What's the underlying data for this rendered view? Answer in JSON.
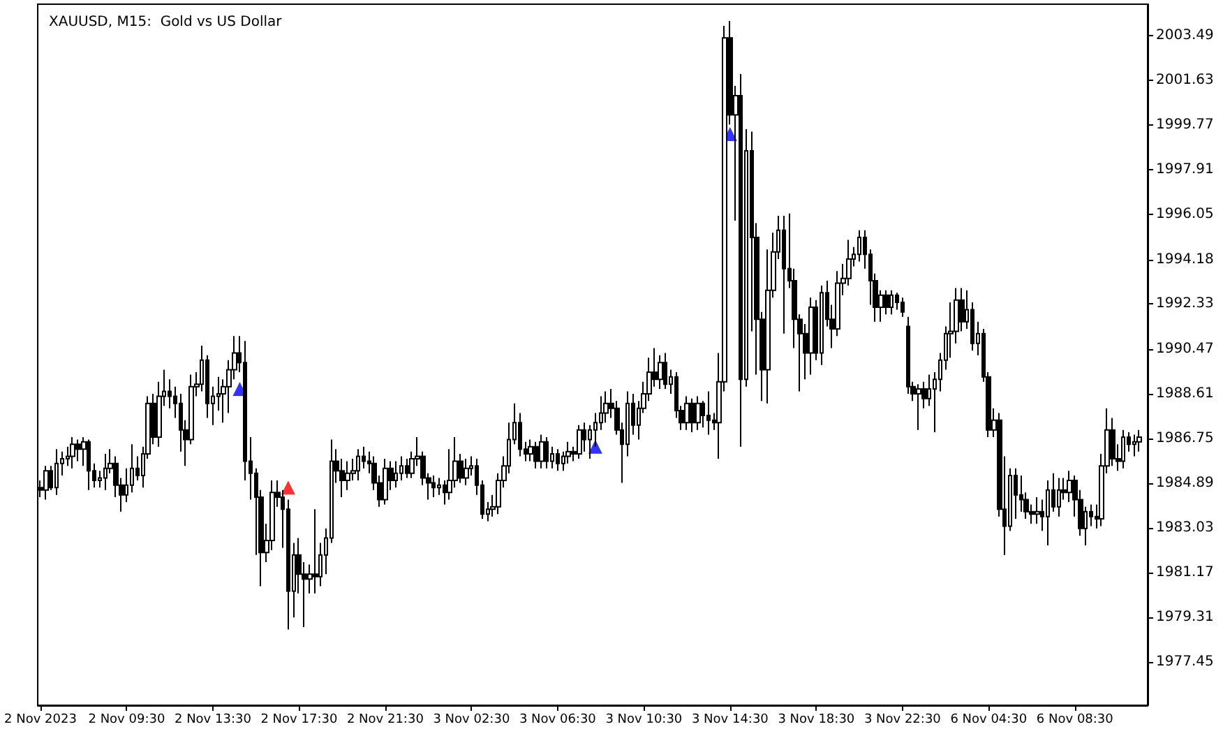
{
  "chart_data": {
    "type": "candlestick",
    "title": "XAUUSD, M15:  Gold vs US Dollar",
    "categories": [
      "2 Nov 2023",
      null,
      null,
      null,
      null,
      null,
      null,
      null,
      null,
      null,
      null,
      null,
      null,
      null,
      null,
      null,
      "2 Nov 09:30",
      null,
      null,
      null,
      null,
      null,
      null,
      null,
      null,
      null,
      null,
      null,
      null,
      null,
      null,
      null,
      "2 Nov 13:30",
      null,
      null,
      null,
      null,
      null,
      null,
      null,
      null,
      null,
      null,
      null,
      null,
      null,
      null,
      null,
      "2 Nov 17:30",
      null,
      null,
      null,
      null,
      null,
      null,
      null,
      null,
      null,
      null,
      null,
      null,
      null,
      null,
      null,
      "2 Nov 21:30",
      null,
      null,
      null,
      null,
      null,
      null,
      null,
      null,
      null,
      null,
      null,
      null,
      null,
      null,
      null,
      "3 Nov 02:30",
      null,
      null,
      null,
      null,
      null,
      null,
      null,
      null,
      null,
      null,
      null,
      null,
      null,
      null,
      null,
      "3 Nov 06:30",
      null,
      null,
      null,
      null,
      null,
      null,
      null,
      null,
      null,
      null,
      null,
      null,
      null,
      null,
      null,
      "3 Nov 10:30",
      null,
      null,
      null,
      null,
      null,
      null,
      null,
      null,
      null,
      null,
      null,
      null,
      null,
      null,
      null,
      "3 Nov 14:30",
      null,
      null,
      null,
      null,
      null,
      null,
      null,
      null,
      null,
      null,
      null,
      null,
      null,
      null,
      null,
      "3 Nov 18:30",
      null,
      null,
      null,
      null,
      null,
      null,
      null,
      null,
      null,
      null,
      null,
      null,
      null,
      null,
      null,
      "3 Nov 22:30",
      null,
      null,
      null,
      null,
      null,
      null,
      null,
      null,
      null,
      null,
      null,
      null,
      null,
      null,
      null,
      "6 Nov 04:30",
      null,
      null,
      null,
      null,
      null,
      null,
      null,
      null,
      null,
      null,
      null,
      null,
      null,
      null,
      null,
      "6 Nov 08:30",
      null,
      null,
      null,
      null,
      null,
      null,
      null,
      null,
      null,
      null,
      null,
      null
    ],
    "color": "#000000",
    "ohlc": [
      [
        1984.7,
        1985.0,
        1984.3,
        1984.6
      ],
      [
        1984.6,
        1985.6,
        1984.2,
        1985.4
      ],
      [
        1985.4,
        1985.6,
        1984.6,
        1984.7
      ],
      [
        1984.7,
        1986.3,
        1984.4,
        1985.7
      ],
      [
        1985.7,
        1986.2,
        1985.2,
        1985.9
      ],
      [
        1985.9,
        1986.4,
        1985.6,
        1986.0
      ],
      [
        1986.0,
        1986.8,
        1985.5,
        1986.5
      ],
      [
        1986.5,
        1986.7,
        1985.8,
        1986.3
      ],
      [
        1986.3,
        1986.8,
        1985.6,
        1986.6
      ],
      [
        1986.6,
        1986.7,
        1984.6,
        1985.4
      ],
      [
        1985.4,
        1985.7,
        1984.7,
        1985.0
      ],
      [
        1985.0,
        1985.4,
        1984.7,
        1985.1
      ],
      [
        1985.1,
        1986.1,
        1984.6,
        1985.5
      ],
      [
        1985.5,
        1986.3,
        1985.3,
        1985.7
      ],
      [
        1985.7,
        1986.0,
        1984.3,
        1984.8
      ],
      [
        1984.8,
        1985.1,
        1983.7,
        1984.4
      ],
      [
        1984.4,
        1985.5,
        1984.1,
        1984.8
      ],
      [
        1984.8,
        1986.5,
        1984.5,
        1985.5
      ],
      [
        1985.5,
        1986.0,
        1985.0,
        1985.2
      ],
      [
        1985.2,
        1986.4,
        1984.7,
        1986.1
      ],
      [
        1986.1,
        1988.5,
        1985.9,
        1988.2
      ],
      [
        1988.2,
        1988.6,
        1986.5,
        1986.8
      ],
      [
        1986.8,
        1989.1,
        1986.4,
        1988.5
      ],
      [
        1988.5,
        1989.6,
        1988.1,
        1988.7
      ],
      [
        1988.7,
        1989.2,
        1988.0,
        1988.5
      ],
      [
        1988.5,
        1988.9,
        1987.6,
        1988.2
      ],
      [
        1988.2,
        1988.6,
        1986.2,
        1987.1
      ],
      [
        1987.1,
        1987.5,
        1985.6,
        1986.7
      ],
      [
        1986.7,
        1989.4,
        1986.5,
        1988.9
      ],
      [
        1988.9,
        1989.5,
        1988.5,
        1989.0
      ],
      [
        1989.0,
        1990.6,
        1988.7,
        1990.0
      ],
      [
        1990.0,
        1990.2,
        1987.6,
        1988.2
      ],
      [
        1988.2,
        1988.9,
        1987.3,
        1988.5
      ],
      [
        1988.5,
        1989.3,
        1987.9,
        1988.6
      ],
      [
        1988.6,
        1989.2,
        1987.4,
        1988.9
      ],
      [
        1988.9,
        1990.0,
        1987.8,
        1989.6
      ],
      [
        1989.6,
        1991.0,
        1989.2,
        1990.3
      ],
      [
        1990.3,
        1991.0,
        1989.5,
        1989.9
      ],
      [
        1989.9,
        1990.8,
        1985.0,
        1985.8
      ],
      [
        1985.8,
        1986.8,
        1984.2,
        1985.3
      ],
      [
        1985.3,
        1985.5,
        1981.9,
        1984.3
      ],
      [
        1984.3,
        1984.6,
        1980.6,
        1982.0
      ],
      [
        1982.0,
        1983.2,
        1981.6,
        1982.5
      ],
      [
        1982.5,
        1985.0,
        1982.1,
        1984.5
      ],
      [
        1984.5,
        1985.0,
        1983.9,
        1984.3
      ],
      [
        1984.3,
        1984.6,
        1982.2,
        1983.8
      ],
      [
        1983.8,
        1984.2,
        1978.8,
        1980.4
      ],
      [
        1980.4,
        1982.4,
        1979.3,
        1981.9
      ],
      [
        1981.9,
        1982.6,
        1980.3,
        1981.1
      ],
      [
        1981.1,
        1981.6,
        1978.9,
        1980.9
      ],
      [
        1980.9,
        1981.5,
        1980.3,
        1981.1
      ],
      [
        1981.1,
        1983.8,
        1980.3,
        1981.0
      ],
      [
        1981.0,
        1982.4,
        1980.6,
        1981.9
      ],
      [
        1981.9,
        1983.0,
        1981.1,
        1982.6
      ],
      [
        1982.6,
        1986.7,
        1982.4,
        1985.8
      ],
      [
        1985.8,
        1986.3,
        1984.9,
        1985.4
      ],
      [
        1985.4,
        1985.9,
        1984.3,
        1985.0
      ],
      [
        1985.0,
        1985.8,
        1984.6,
        1985.3
      ],
      [
        1985.3,
        1985.9,
        1985.0,
        1985.4
      ],
      [
        1985.4,
        1986.3,
        1985.0,
        1986.0
      ],
      [
        1986.0,
        1986.4,
        1985.5,
        1985.8
      ],
      [
        1985.8,
        1986.2,
        1985.3,
        1985.7
      ],
      [
        1985.7,
        1986.0,
        1984.6,
        1984.9
      ],
      [
        1984.9,
        1985.2,
        1983.9,
        1984.2
      ],
      [
        1984.2,
        1985.9,
        1984.0,
        1985.5
      ],
      [
        1985.5,
        1985.8,
        1984.6,
        1985.0
      ],
      [
        1985.0,
        1985.8,
        1984.7,
        1985.3
      ],
      [
        1985.3,
        1986.0,
        1985.0,
        1985.6
      ],
      [
        1985.6,
        1985.9,
        1985.1,
        1985.3
      ],
      [
        1985.3,
        1986.2,
        1985.1,
        1985.9
      ],
      [
        1985.9,
        1986.8,
        1985.6,
        1986.0
      ],
      [
        1986.0,
        1986.2,
        1984.8,
        1985.1
      ],
      [
        1985.1,
        1985.3,
        1984.2,
        1984.9
      ],
      [
        1984.9,
        1985.2,
        1984.3,
        1984.7
      ],
      [
        1984.7,
        1985.1,
        1984.4,
        1984.8
      ],
      [
        1984.8,
        1985.0,
        1984.0,
        1984.5
      ],
      [
        1984.5,
        1986.3,
        1984.2,
        1985.0
      ],
      [
        1985.0,
        1986.8,
        1984.7,
        1985.8
      ],
      [
        1985.8,
        1986.1,
        1984.9,
        1985.1
      ],
      [
        1985.1,
        1985.9,
        1984.8,
        1985.5
      ],
      [
        1985.5,
        1986.0,
        1985.2,
        1985.6
      ],
      [
        1985.6,
        1985.9,
        1984.4,
        1984.8
      ],
      [
        1984.8,
        1985.0,
        1983.4,
        1983.6
      ],
      [
        1983.6,
        1984.1,
        1983.3,
        1983.8
      ],
      [
        1983.8,
        1984.4,
        1983.5,
        1983.9
      ],
      [
        1983.9,
        1985.3,
        1983.6,
        1985.0
      ],
      [
        1985.0,
        1986.0,
        1984.7,
        1985.6
      ],
      [
        1985.6,
        1987.4,
        1985.3,
        1986.7
      ],
      [
        1986.7,
        1988.2,
        1986.5,
        1987.4
      ],
      [
        1987.4,
        1987.8,
        1986.0,
        1986.3
      ],
      [
        1986.3,
        1986.6,
        1985.8,
        1986.1
      ],
      [
        1986.1,
        1986.7,
        1985.8,
        1986.4
      ],
      [
        1986.4,
        1986.6,
        1985.5,
        1985.8
      ],
      [
        1985.8,
        1986.9,
        1985.5,
        1986.6
      ],
      [
        1986.6,
        1986.8,
        1985.5,
        1985.8
      ],
      [
        1985.8,
        1986.4,
        1985.5,
        1986.1
      ],
      [
        1986.1,
        1986.3,
        1985.4,
        1985.7
      ],
      [
        1985.7,
        1986.2,
        1985.4,
        1986.0
      ],
      [
        1986.0,
        1986.6,
        1985.7,
        1986.2
      ],
      [
        1986.2,
        1986.4,
        1985.8,
        1986.1
      ],
      [
        1986.1,
        1987.3,
        1985.9,
        1987.1
      ],
      [
        1987.1,
        1987.4,
        1986.2,
        1986.7
      ],
      [
        1986.7,
        1987.3,
        1985.9,
        1987.1
      ],
      [
        1987.1,
        1987.8,
        1986.4,
        1987.4
      ],
      [
        1987.4,
        1988.5,
        1987.1,
        1987.8
      ],
      [
        1987.8,
        1988.7,
        1987.4,
        1988.2
      ],
      [
        1988.2,
        1988.8,
        1987.6,
        1988.0
      ],
      [
        1988.0,
        1988.3,
        1986.9,
        1987.1
      ],
      [
        1987.1,
        1987.4,
        1984.9,
        1986.5
      ],
      [
        1986.5,
        1988.7,
        1986.0,
        1988.2
      ],
      [
        1988.2,
        1988.6,
        1986.9,
        1987.3
      ],
      [
        1987.3,
        1988.3,
        1986.7,
        1988.0
      ],
      [
        1988.0,
        1989.1,
        1987.8,
        1988.6
      ],
      [
        1988.6,
        1990.1,
        1988.3,
        1989.5
      ],
      [
        1989.5,
        1990.5,
        1988.9,
        1989.2
      ],
      [
        1989.2,
        1990.2,
        1988.8,
        1989.9
      ],
      [
        1989.9,
        1990.3,
        1988.8,
        1989.0
      ],
      [
        1989.0,
        1989.6,
        1988.6,
        1989.3
      ],
      [
        1989.3,
        1989.5,
        1987.6,
        1987.9
      ],
      [
        1987.9,
        1988.1,
        1987.1,
        1987.4
      ],
      [
        1987.4,
        1988.5,
        1987.1,
        1988.2
      ],
      [
        1988.2,
        1988.4,
        1987.0,
        1987.4
      ],
      [
        1987.4,
        1988.5,
        1987.1,
        1988.2
      ],
      [
        1988.2,
        1988.3,
        1987.2,
        1987.7
      ],
      [
        1987.7,
        1988.7,
        1986.9,
        1987.5
      ],
      [
        1987.5,
        1987.8,
        1987.1,
        1987.4
      ],
      [
        1987.4,
        1990.3,
        1985.9,
        1989.1
      ],
      [
        1989.1,
        2003.9,
        1988.7,
        2003.4
      ],
      [
        2003.4,
        2004.1,
        1999.8,
        2000.2
      ],
      [
        2000.2,
        2001.4,
        1995.8,
        2001.0
      ],
      [
        2001.0,
        2001.9,
        1986.4,
        1989.2
      ],
      [
        1989.2,
        1999.6,
        1988.9,
        1998.7
      ],
      [
        1998.7,
        1999.5,
        1991.2,
        1995.1
      ],
      [
        1995.1,
        1995.7,
        1989.4,
        1991.7
      ],
      [
        1991.7,
        1992.0,
        1988.3,
        1989.6
      ],
      [
        1989.6,
        1994.6,
        1988.2,
        1992.9
      ],
      [
        1992.9,
        1995.3,
        1992.6,
        1994.5
      ],
      [
        1994.5,
        1996.0,
        1994.2,
        1995.4
      ],
      [
        1995.4,
        1996.0,
        1991.1,
        1993.8
      ],
      [
        1993.8,
        1996.1,
        1993.0,
        1993.3
      ],
      [
        1993.3,
        1993.8,
        1990.5,
        1991.7
      ],
      [
        1991.7,
        1991.9,
        1988.7,
        1991.1
      ],
      [
        1991.1,
        1991.5,
        1989.2,
        1990.3
      ],
      [
        1990.3,
        1992.6,
        1989.4,
        1992.2
      ],
      [
        1992.2,
        1992.5,
        1990.0,
        1990.3
      ],
      [
        1990.3,
        1993.1,
        1989.8,
        1992.8
      ],
      [
        1992.8,
        1993.3,
        1991.4,
        1991.7
      ],
      [
        1991.7,
        1992.3,
        1990.5,
        1991.3
      ],
      [
        1991.3,
        1993.7,
        1991.0,
        1993.2
      ],
      [
        1993.2,
        1994.0,
        1992.7,
        1993.4
      ],
      [
        1993.4,
        1995.0,
        1993.1,
        1994.2
      ],
      [
        1994.2,
        1994.7,
        1993.9,
        1994.4
      ],
      [
        1994.4,
        1995.4,
        1994.1,
        1995.1
      ],
      [
        1995.1,
        1995.4,
        1993.8,
        1994.4
      ],
      [
        1994.4,
        1994.6,
        1992.3,
        1993.3
      ],
      [
        1993.3,
        1993.6,
        1991.6,
        1992.2
      ],
      [
        1992.2,
        1992.9,
        1991.6,
        1992.7
      ],
      [
        1992.7,
        1992.9,
        1991.9,
        1992.2
      ],
      [
        1992.2,
        1992.9,
        1991.9,
        1992.7
      ],
      [
        1992.7,
        1992.8,
        1992.1,
        1992.4
      ],
      [
        1992.4,
        1992.6,
        1991.8,
        1992.0
      ],
      [
        1991.4,
        1991.8,
        1988.6,
        1988.9
      ],
      [
        1988.9,
        1989.1,
        1988.3,
        1988.6
      ],
      [
        1988.6,
        1989.0,
        1987.1,
        1988.8
      ],
      [
        1988.8,
        1989.1,
        1988.0,
        1988.4
      ],
      [
        1988.4,
        1989.4,
        1988.1,
        1988.8
      ],
      [
        1988.8,
        1989.5,
        1987.0,
        1989.2
      ],
      [
        1989.2,
        1990.3,
        1988.7,
        1990.0
      ],
      [
        1990.0,
        1991.4,
        1989.6,
        1991.1
      ],
      [
        1991.1,
        1992.4,
        1990.1,
        1991.2
      ],
      [
        1991.2,
        1993.0,
        1990.7,
        1992.5
      ],
      [
        1992.5,
        1993.0,
        1991.2,
        1991.6
      ],
      [
        1991.6,
        1992.9,
        1991.3,
        1992.1
      ],
      [
        1992.1,
        1992.4,
        1990.4,
        1990.7
      ],
      [
        1990.7,
        1991.6,
        1990.2,
        1991.1
      ],
      [
        1991.1,
        1991.3,
        1989.1,
        1989.3
      ],
      [
        1989.3,
        1989.5,
        1986.8,
        1987.1
      ],
      [
        1987.1,
        1988.0,
        1986.8,
        1987.5
      ],
      [
        1987.5,
        1987.8,
        1983.5,
        1983.8
      ],
      [
        1983.8,
        1986.0,
        1981.9,
        1983.1
      ],
      [
        1983.1,
        1985.5,
        1982.9,
        1985.2
      ],
      [
        1985.2,
        1985.5,
        1983.4,
        1984.4
      ],
      [
        1984.4,
        1985.2,
        1983.7,
        1984.2
      ],
      [
        1984.2,
        1984.5,
        1983.4,
        1983.7
      ],
      [
        1983.7,
        1984.0,
        1983.2,
        1983.6
      ],
      [
        1983.6,
        1984.3,
        1983.2,
        1983.7
      ],
      [
        1983.7,
        1984.2,
        1982.9,
        1983.5
      ],
      [
        1983.5,
        1985.0,
        1982.3,
        1984.6
      ],
      [
        1984.6,
        1985.3,
        1983.7,
        1983.9
      ],
      [
        1983.9,
        1985.1,
        1983.5,
        1984.6
      ],
      [
        1984.6,
        1985.1,
        1984.2,
        1984.5
      ],
      [
        1984.5,
        1985.4,
        1984.1,
        1985.0
      ],
      [
        1985.0,
        1985.2,
        1983.5,
        1984.2
      ],
      [
        1984.2,
        1984.6,
        1982.7,
        1983.0
      ],
      [
        1983.0,
        1983.9,
        1982.3,
        1983.7
      ],
      [
        1983.7,
        1984.0,
        1983.1,
        1983.5
      ],
      [
        1983.5,
        1984.0,
        1983.0,
        1983.4
      ],
      [
        1983.4,
        1986.1,
        1983.1,
        1985.6
      ],
      [
        1985.6,
        1988.0,
        1985.3,
        1987.1
      ],
      [
        1987.1,
        1987.6,
        1985.6,
        1985.9
      ],
      [
        1985.9,
        1986.5,
        1985.4,
        1985.8
      ],
      [
        1985.8,
        1987.1,
        1985.5,
        1986.8
      ],
      [
        1986.8,
        1987.0,
        1986.2,
        1986.5
      ],
      [
        1986.5,
        1986.9,
        1986.0,
        1986.6
      ],
      [
        1986.6,
        1987.1,
        1986.2,
        1986.8
      ]
    ],
    "series": [
      {
        "type": "scatter",
        "color": "#0000ff",
        "marker": "triangle",
        "values": [
          null,
          null,
          null,
          null,
          null,
          null,
          null,
          null,
          null,
          null,
          null,
          null,
          null,
          null,
          null,
          null,
          null,
          null,
          null,
          null,
          null,
          null,
          null,
          null,
          null,
          null,
          null,
          null,
          null,
          null,
          null,
          null,
          null,
          null,
          null,
          null,
          null,
          1988.8,
          null,
          null,
          null,
          null,
          null,
          null,
          null,
          null,
          null,
          null,
          null,
          null,
          null,
          null,
          null,
          null,
          null,
          null,
          null,
          null,
          null,
          null,
          null,
          null,
          null,
          null,
          null,
          null,
          null,
          null,
          null,
          null,
          null,
          null,
          null,
          null,
          null,
          null,
          null,
          null,
          null,
          null,
          null,
          null,
          null,
          null,
          null,
          null,
          null,
          null,
          null,
          null,
          null,
          null,
          null,
          null,
          null,
          null,
          null,
          null,
          null,
          null,
          null,
          null,
          null,
          1986.4,
          null,
          null,
          null,
          null,
          null,
          null,
          null,
          null,
          null,
          null,
          null,
          null,
          null,
          null,
          null,
          null,
          null,
          null,
          null,
          null,
          null,
          null,
          null,
          null,
          1999.4,
          null,
          null,
          null,
          null,
          null,
          null,
          null,
          null,
          null,
          null,
          null,
          null,
          null,
          null,
          null,
          null,
          null,
          null,
          null,
          null,
          null,
          null,
          null,
          null,
          null,
          null,
          null,
          null,
          null,
          null,
          null,
          null,
          null,
          null,
          null,
          null,
          null,
          null,
          null,
          null,
          null,
          null,
          null,
          null,
          null,
          null,
          null,
          null,
          null,
          null,
          null,
          null,
          null,
          null,
          null,
          null,
          null,
          null,
          null,
          null,
          null,
          null,
          null,
          null,
          null,
          null,
          null,
          null,
          null,
          null,
          null,
          null,
          null,
          null,
          null,
          null
        ]
      },
      {
        "type": "scatter",
        "color": "#ff0000",
        "marker": "triangle",
        "values": [
          null,
          null,
          null,
          null,
          null,
          null,
          null,
          null,
          null,
          null,
          null,
          null,
          null,
          null,
          null,
          null,
          null,
          null,
          null,
          null,
          null,
          null,
          null,
          null,
          null,
          null,
          null,
          null,
          null,
          null,
          null,
          null,
          null,
          null,
          null,
          null,
          null,
          null,
          null,
          null,
          null,
          null,
          null,
          null,
          null,
          null,
          1984.7,
          null,
          null,
          null,
          null,
          null,
          null,
          null,
          null,
          null,
          null,
          null,
          null,
          null,
          null,
          null,
          null,
          null,
          null,
          null,
          null,
          null,
          null,
          null,
          null,
          null,
          null,
          null,
          null,
          null,
          null,
          null,
          null,
          null,
          null,
          null,
          null,
          null,
          null,
          null,
          null,
          null,
          null,
          null,
          null,
          null,
          null,
          null,
          null,
          null,
          null,
          null,
          null,
          null,
          null,
          null,
          null,
          null,
          null,
          null,
          null,
          null,
          null,
          null,
          null,
          null,
          null,
          null,
          null,
          null,
          null,
          null,
          null,
          null,
          null,
          null,
          null,
          null,
          null,
          null,
          null,
          null,
          null,
          null,
          null,
          null,
          null,
          null,
          null,
          null,
          null,
          null,
          null,
          null,
          null,
          null,
          null,
          null,
          null,
          null,
          null,
          null,
          null,
          null,
          null,
          null,
          null,
          null,
          null,
          null,
          null,
          null,
          null,
          null,
          null,
          null,
          null,
          null,
          null,
          null,
          null,
          null,
          null,
          null,
          null,
          null,
          null,
          null,
          null,
          null,
          null,
          null,
          null,
          null,
          null,
          null,
          null,
          null,
          null,
          null,
          null,
          null,
          null,
          null,
          null,
          null,
          null,
          null,
          null,
          null,
          null,
          null,
          null,
          null,
          null,
          null,
          null,
          null,
          null
        ]
      }
    ],
    "ylim": [
      1975.65,
      2004.8
    ],
    "yticks": [
      1977.45,
      1979.31,
      1981.17,
      1983.03,
      1984.89,
      1986.75,
      1988.61,
      1990.47,
      1992.33,
      1994.18,
      1996.05,
      1997.91,
      1999.77,
      2001.63,
      2003.49
    ],
    "grid": false
  }
}
